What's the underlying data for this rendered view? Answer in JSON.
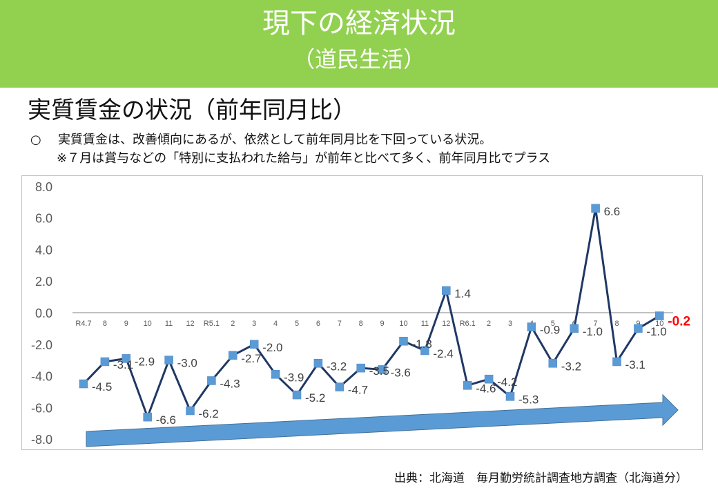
{
  "banner": {
    "title": "現下の経済状況",
    "subtitle": "（道民生活）"
  },
  "heading": "実質賃金の状況（前年同月比）",
  "bullets": {
    "mark": "○",
    "line1": "実質賃金は、改善傾向にあるが、依然として前年同月比を下回っている状況。",
    "line2": "※７月は賞与などの「特別に支払われた給与」が前年と比べて多く、前年同月比でプラス"
  },
  "source": "出典：北海道　毎月勤労統計調査地方調査（北海道分）",
  "colors": {
    "banner": "#92d050",
    "line": "#1f3864",
    "marker": "#5b9bd5",
    "arrow": "#5b9bd5",
    "latest": "#ff0000"
  },
  "chart_data": {
    "type": "line",
    "ylim": [
      -8,
      8
    ],
    "yticks": [
      "8.0",
      "6.0",
      "4.0",
      "2.0",
      "0.0",
      "-2.0",
      "-4.0",
      "-6.0",
      "-8.0"
    ],
    "categories": [
      "R4.7",
      "8",
      "9",
      "10",
      "11",
      "12",
      "R5.1",
      "2",
      "3",
      "4",
      "5",
      "6",
      "7",
      "8",
      "9",
      "10",
      "11",
      "12",
      "R6.1",
      "2",
      "3",
      "4",
      "5",
      "6",
      "7",
      "8",
      "9",
      "10"
    ],
    "values": [
      -4.5,
      -3.1,
      -2.9,
      -6.6,
      -3.0,
      -6.2,
      -4.3,
      -2.7,
      -2.0,
      -3.9,
      -5.2,
      -3.2,
      -4.7,
      -3.5,
      -3.6,
      -1.8,
      -2.4,
      1.4,
      -4.6,
      -4.2,
      -5.3,
      -0.9,
      -3.2,
      -1.0,
      6.6,
      -3.1,
      -1.0,
      -0.2
    ],
    "data_labels": [
      "-4.5",
      "-3.1",
      "-2.9",
      "-6.6",
      "-3.0",
      "-6.2",
      "-4.3",
      "-2.7",
      "-2.0",
      "-3.9",
      "-5.2",
      "-3.2",
      "-4.7",
      "-3.5",
      "-3.6",
      "-1.8",
      "-2.4",
      "1.4",
      "-4.6",
      "-4.2",
      "-5.3",
      "-0.9",
      "-3.2",
      "-1.0",
      "6.6",
      "-3.1",
      "-1.0",
      "-0.2"
    ],
    "grid": false,
    "annotation": "upward trend arrow"
  }
}
